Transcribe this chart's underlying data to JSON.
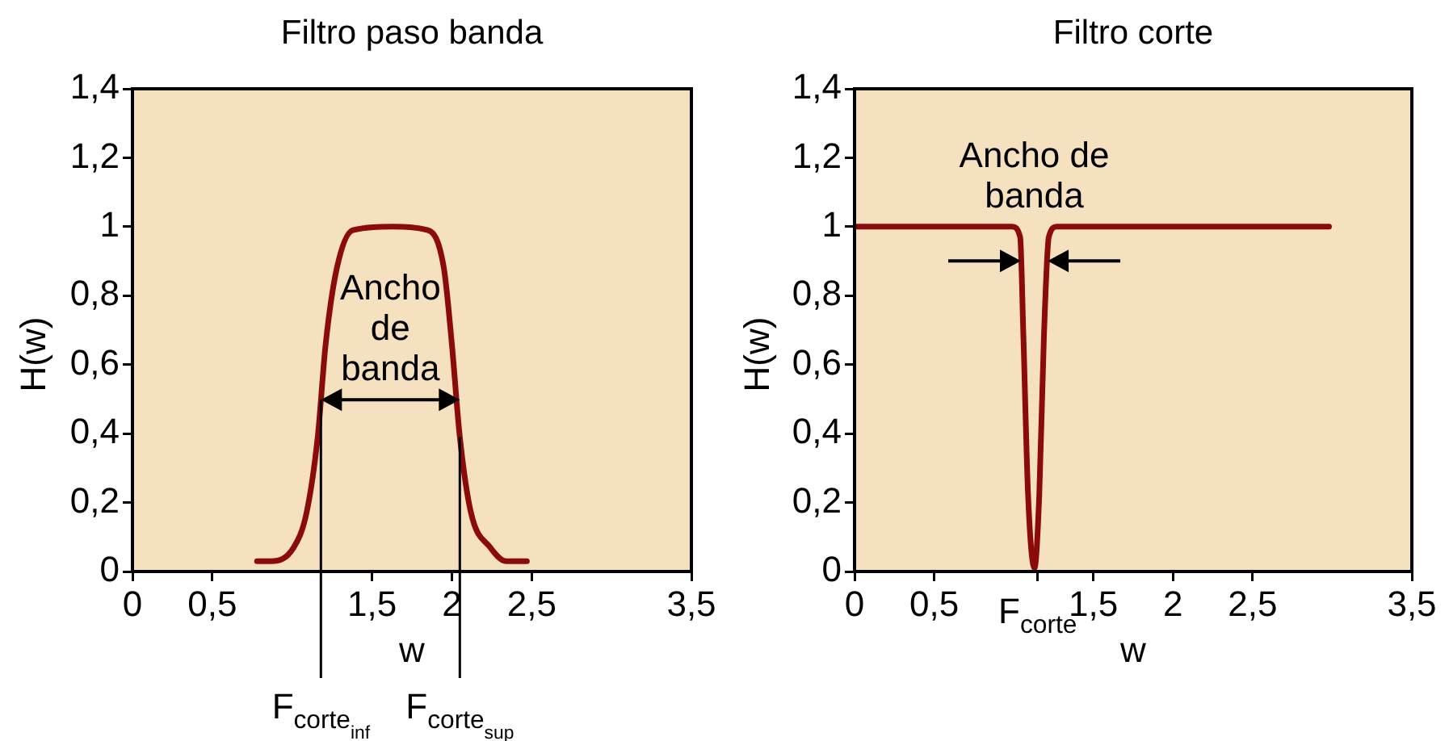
{
  "chart_data": [
    {
      "type": "line",
      "title": "Filtro paso banda",
      "xlabel": "w",
      "ylabel": "H(w)",
      "marker": "none",
      "line_style": "solid",
      "xlim": [
        0,
        3.5
      ],
      "ylim": [
        0,
        1.4
      ],
      "xticks": [
        {
          "value": 0,
          "label": "0"
        },
        {
          "value": 0.5,
          "label": "0,5"
        },
        {
          "value": 1.5,
          "label": "1,5"
        },
        {
          "value": 2,
          "label": "2"
        },
        {
          "value": 2.5,
          "label": "2,5"
        },
        {
          "value": 3.5,
          "label": "3,5"
        }
      ],
      "yticks": [
        {
          "value": 0,
          "label": "0"
        },
        {
          "value": 0.2,
          "label": "0,2"
        },
        {
          "value": 0.4,
          "label": "0,4"
        },
        {
          "value": 0.6,
          "label": "0,6"
        },
        {
          "value": 0.8,
          "label": "0,8"
        },
        {
          "value": 1,
          "label": "1"
        },
        {
          "value": 1.2,
          "label": "1,2"
        },
        {
          "value": 1.4,
          "label": "1,4"
        }
      ],
      "series": [
        {
          "color": "#8b0a0a",
          "x": [
            0.78,
            0.87,
            1.01,
            1.09,
            1.16,
            1.21,
            1.28,
            1.38,
            1.63,
            1.85,
            1.95,
            2.0,
            2.05,
            2.12,
            2.24,
            2.34,
            2.47
          ],
          "values": [
            0.03,
            0.03,
            0.07,
            0.17,
            0.39,
            0.66,
            0.88,
            0.99,
            1.0,
            0.99,
            0.88,
            0.66,
            0.39,
            0.17,
            0.07,
            0.03,
            0.03
          ]
        }
      ],
      "ref_lines": [
        {
          "axis": "x",
          "value": 1.18,
          "label": "F$_{corte}$$_{inf}$"
        },
        {
          "axis": "x",
          "value": 2.05,
          "label": "F$_{corte}$$_{sup}$"
        }
      ],
      "annotations": [
        "Ancho\nde\nbanda"
      ]
    },
    {
      "type": "line",
      "title": "Filtro corte",
      "xlabel": "w",
      "ylabel": "H(w)",
      "marker": "none",
      "line_style": "solid",
      "xlim": [
        0,
        3.5
      ],
      "ylim": [
        0,
        1.4
      ],
      "xticks": [
        {
          "value": 0,
          "label": "0"
        },
        {
          "value": 0.5,
          "label": "0,5"
        },
        {
          "value": 1.15,
          "label": "F$_{corte}$"
        },
        {
          "value": 1.5,
          "label": "1,5"
        },
        {
          "value": 2,
          "label": "2"
        },
        {
          "value": 2.5,
          "label": "2,5"
        },
        {
          "value": 3.5,
          "label": "3,5"
        }
      ],
      "yticks": [
        {
          "value": 0,
          "label": "0"
        },
        {
          "value": 0.2,
          "label": "0,2"
        },
        {
          "value": 0.4,
          "label": "0,4"
        },
        {
          "value": 0.6,
          "label": "0,6"
        },
        {
          "value": 0.8,
          "label": "0,8"
        },
        {
          "value": 1,
          "label": "1"
        },
        {
          "value": 1.2,
          "label": "1,2"
        },
        {
          "value": 1.4,
          "label": "1,4"
        }
      ],
      "series": [
        {
          "color": "#8b0a0a",
          "x": [
            0,
            0.99,
            1.04,
            1.06,
            1.09,
            1.13,
            1.16,
            1.19,
            1.22,
            1.27,
            2.98
          ],
          "values": [
            1.0,
            1.0,
            0.97,
            0.69,
            0.22,
            0.01,
            0.22,
            0.69,
            0.97,
            1.0,
            1.0
          ]
        }
      ],
      "annotations": [
        "Ancho de\nbanda"
      ]
    }
  ]
}
